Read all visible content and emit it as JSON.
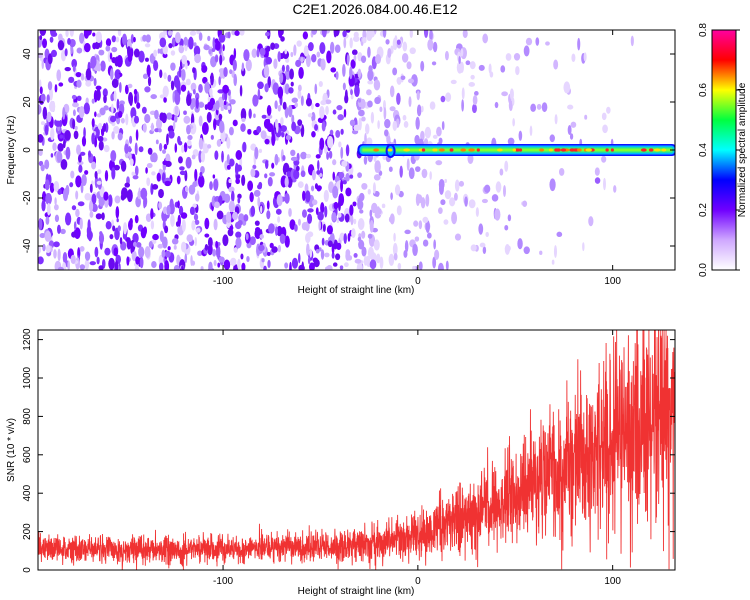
{
  "figure_title": "C2E1.2026.084.00.46.E12",
  "colorbar": {
    "label": "Normalized spectral amplitude",
    "range": [
      0.0,
      0.8
    ],
    "ticks": [
      "0.0",
      "0.2",
      "0.4",
      "0.6",
      "0.8"
    ],
    "colors": [
      "#ffffff",
      "#cfa8ff",
      "#7000ff",
      "#0000ff",
      "#00ffff",
      "#00ff40",
      "#ffff00",
      "#ff0000",
      "#ff00a0"
    ]
  },
  "chart_data": [
    {
      "type": "heatmap",
      "title": "",
      "xlabel": "Height of straight line (km)",
      "ylabel": "Frequency (Hz)",
      "xlim": [
        -195,
        132
      ],
      "ylim": [
        -50,
        50
      ],
      "xticks": [
        "-100",
        "0",
        "100"
      ],
      "yticks": [
        "-40",
        "-20",
        "0",
        "20",
        "40"
      ],
      "noise_floor": {
        "description_x_range": [
          -195,
          -30
        ],
        "typical_amplitude": 0.05
      },
      "signal_line": {
        "frequency_hz": 0,
        "x_start": -30,
        "x_end": 132,
        "peak_amplitude": 0.8
      }
    },
    {
      "type": "line",
      "title": "",
      "xlabel": "Height of straight line (km)",
      "ylabel": "SNR (10 * v/v)",
      "xlim": [
        -195,
        132
      ],
      "ylim": [
        0,
        1250
      ],
      "xticks": [
        "-100",
        "0",
        "100"
      ],
      "yticks": [
        "0",
        "200",
        "400",
        "600",
        "800",
        "1000",
        "1200"
      ],
      "color": "#f03232",
      "series": [
        {
          "x": [
            -195,
            -150,
            -100,
            -50,
            -20,
            0,
            20,
            50,
            80,
            100,
            120,
            132
          ],
          "y": [
            110,
            105,
            110,
            120,
            140,
            180,
            260,
            400,
            560,
            680,
            800,
            850
          ]
        }
      ]
    }
  ]
}
